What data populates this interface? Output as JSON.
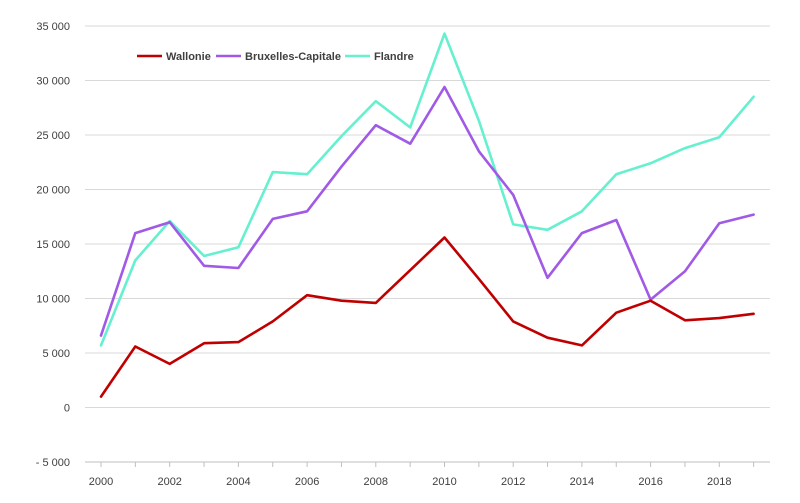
{
  "chart_data": {
    "type": "line",
    "title": "",
    "xlabel": "",
    "ylabel": "",
    "x": [
      2000,
      2001,
      2002,
      2003,
      2004,
      2005,
      2006,
      2007,
      2008,
      2009,
      2010,
      2011,
      2012,
      2013,
      2014,
      2015,
      2016,
      2017,
      2018,
      2019
    ],
    "xticks": [
      2000,
      2002,
      2004,
      2006,
      2008,
      2010,
      2012,
      2014,
      2016,
      2018
    ],
    "xtick_labels": [
      "2000",
      "2002",
      "2004",
      "2006",
      "2008",
      "2010",
      "2012",
      "2014",
      "2016",
      "2018"
    ],
    "ylim": [
      -5000,
      35000
    ],
    "yticks": [
      -5000,
      0,
      5000,
      10000,
      15000,
      20000,
      25000,
      30000,
      35000
    ],
    "ytick_labels": [
      "- 5 000",
      "0",
      "5 000",
      "10 000",
      "15 000",
      "20 000",
      "25 000",
      "30 000",
      "35 000"
    ],
    "grid": "horizontal",
    "legend_position": "top-left",
    "series": [
      {
        "name": "Wallonie",
        "color": "#c00000",
        "values": [
          1000,
          5600,
          4000,
          5900,
          6000,
          7900,
          10300,
          9800,
          9600,
          12600,
          15600,
          11800,
          7900,
          6400,
          5700,
          8700,
          9800,
          8000,
          8200,
          8600
        ]
      },
      {
        "name": "Bruxelles-Capitale",
        "color": "#a05ae6",
        "values": [
          6600,
          16000,
          17000,
          13000,
          12800,
          17300,
          18000,
          22100,
          25900,
          24200,
          29400,
          23500,
          19500,
          11900,
          16000,
          17200,
          9900,
          12500,
          16900,
          17700
        ]
      },
      {
        "name": "Flandre",
        "color": "#66f0d0",
        "values": [
          5700,
          13500,
          17100,
          13900,
          14700,
          21600,
          21400,
          24900,
          28100,
          25700,
          34300,
          26300,
          16800,
          16300,
          18000,
          21400,
          22400,
          23800,
          24800,
          28500
        ]
      }
    ]
  }
}
